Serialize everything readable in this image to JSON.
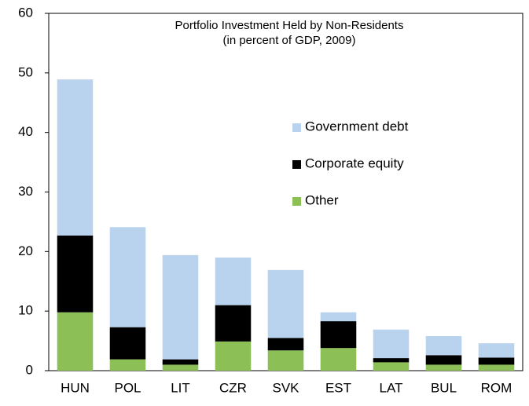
{
  "chart_data": {
    "type": "stacked_bar",
    "title": "Portfolio Investment Held by Non-Residents",
    "subtitle": "(in percent of GDP, 2009)",
    "categories": [
      "HUN",
      "POL",
      "LIT",
      "CZR",
      "SVK",
      "EST",
      "LAT",
      "BUL",
      "ROM"
    ],
    "series": [
      {
        "name": "Other",
        "color": "#8cbf55",
        "values": [
          9.8,
          1.9,
          1.0,
          4.9,
          3.4,
          3.8,
          1.4,
          1.0,
          1.0
        ]
      },
      {
        "name": "Corporate equity",
        "color": "#000000",
        "values": [
          12.9,
          5.4,
          0.9,
          6.1,
          2.1,
          4.5,
          0.7,
          1.6,
          1.2
        ]
      },
      {
        "name": "Government debt",
        "color": "#b9d3ee",
        "values": [
          26.2,
          16.8,
          17.5,
          8.0,
          11.4,
          1.5,
          4.8,
          3.2,
          2.4
        ]
      }
    ],
    "ylim": [
      0,
      60
    ],
    "yticks": [
      0,
      10,
      20,
      30,
      40,
      50,
      60
    ],
    "grid": false
  }
}
